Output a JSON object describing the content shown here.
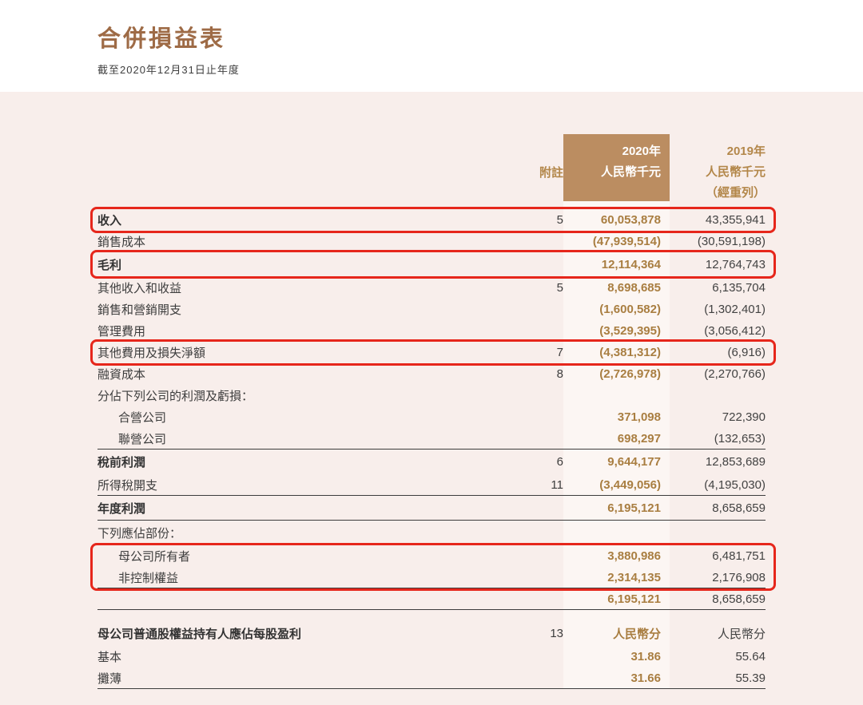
{
  "page": {
    "title": "合併損益表",
    "subtitle": "截至2020年12月31日止年度"
  },
  "colors": {
    "title_brown": "#9e6b46",
    "panel_pink": "#f8eeeb",
    "header_block_tan": "#bb8d61",
    "gold_text": "#a97e41",
    "header_gold": "#b3874a",
    "dark_text": "#3d3d3d",
    "annotation_red": "#e6261b",
    "col_2020_stripe": "#fcf6f3"
  },
  "table": {
    "columns": {
      "note_header": "附註",
      "col2020": {
        "year": "2020年",
        "unit": "人民幣千元"
      },
      "col2019": {
        "year": "2019年",
        "unit": "人民幣千元",
        "restated": "（經重列）"
      }
    },
    "rows": [
      {
        "label": "收入",
        "bold": true,
        "note": "5",
        "v2020": "60,053,878",
        "v2019": "43,355,941",
        "redbox": true
      },
      {
        "label": "銷售成本",
        "v2020": "(47,939,514)",
        "v2019": "(30,591,198)",
        "line_after": true
      },
      {
        "label": "毛利",
        "bold": true,
        "v2020": "12,114,364",
        "v2019": "12,764,743",
        "redbox": true,
        "line_after": true,
        "tall": true
      },
      {
        "label": "其他收入和收益",
        "note": "5",
        "v2020": "8,698,685",
        "v2019": "6,135,704"
      },
      {
        "label": "銷售和營銷開支",
        "v2020": "(1,600,582)",
        "v2019": "(1,302,401)"
      },
      {
        "label": "管理費用",
        "v2020": "(3,529,395)",
        "v2019": "(3,056,412)"
      },
      {
        "label": "其他費用及損失淨額",
        "note": "7",
        "v2020": "(4,381,312)",
        "v2019": "(6,916)",
        "redbox": true
      },
      {
        "label": "融資成本",
        "note": "8",
        "v2020": "(2,726,978)",
        "v2019": "(2,270,766)"
      },
      {
        "label": "分佔下列公司的利潤及虧損："
      },
      {
        "label": "合營公司",
        "indent": true,
        "v2020": "371,098",
        "v2019": "722,390"
      },
      {
        "label": "聯營公司",
        "indent": true,
        "v2020": "698,297",
        "v2019": "(132,653)",
        "line_after": true
      },
      {
        "label": "稅前利潤",
        "bold": true,
        "note": "6",
        "v2020": "9,644,177",
        "v2019": "12,853,689",
        "tall": true
      },
      {
        "label": "所得稅開支",
        "note": "11",
        "v2020": "(3,449,056)",
        "v2019": "(4,195,030)",
        "line_after": true
      },
      {
        "label": "年度利潤",
        "bold": true,
        "v2020": "6,195,121",
        "v2019": "8,658,659",
        "line_after": true,
        "tall": true
      },
      {
        "label": "下列應佔部份：",
        "tall": true
      },
      {
        "label": "母公司所有者",
        "indent": true,
        "v2020": "3,880,986",
        "v2019": "6,481,751",
        "redbox_group": "attribution"
      },
      {
        "label": "非控制權益",
        "indent": true,
        "v2020": "2,314,135",
        "v2019": "2,176,908",
        "redbox_group": "attribution",
        "line_after": true
      },
      {
        "label": "",
        "v2020": "6,195,121",
        "v2019": "8,658,659",
        "line_after": true
      },
      {
        "label": "母公司普通股權益持有人應佔每股盈利",
        "bold": true,
        "note": "13",
        "v2020": "人民幣分",
        "v2019": "人民幣分",
        "gap_before": true,
        "tall": true
      },
      {
        "label": "基本",
        "v2020": "31.86",
        "v2019": "55.64"
      },
      {
        "label": "攤薄",
        "v2020": "31.66",
        "v2019": "55.39",
        "line_after": true
      }
    ]
  }
}
